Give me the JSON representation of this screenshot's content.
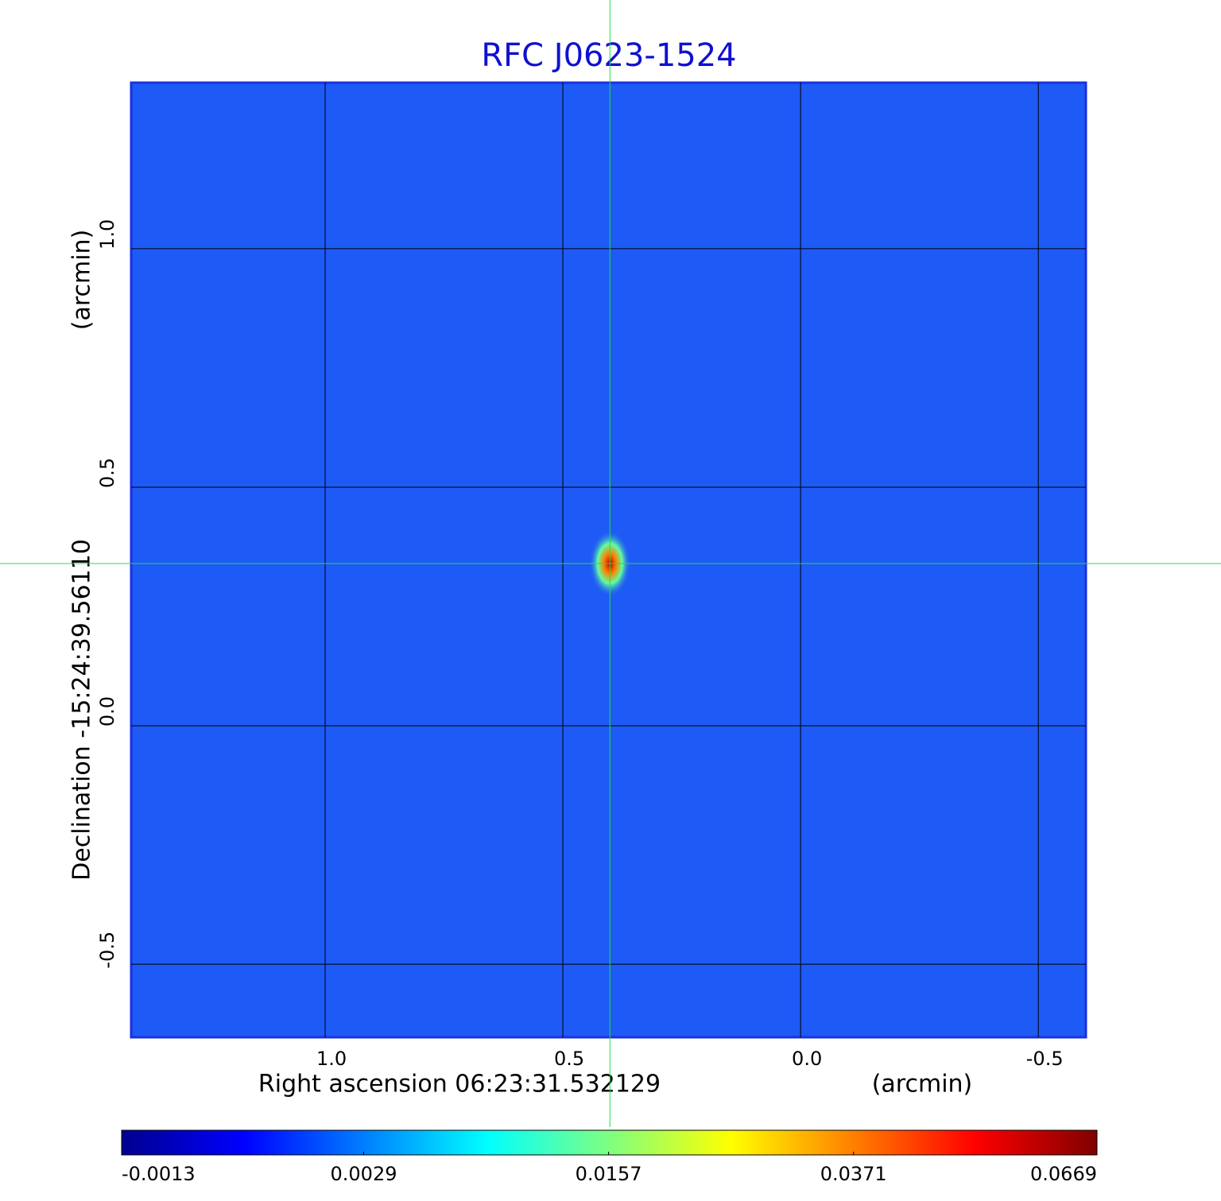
{
  "chart_data": {
    "type": "image",
    "title": "RFC J0623-1524",
    "x_label": "Right ascension  06:23:31.532129",
    "x_unit": "(arcmin)",
    "y_label": "Declination  -15:24:39.56110",
    "y_unit": "(arcmin)",
    "xlim": [
      1.408,
      -0.6
    ],
    "ylim": [
      -0.653,
      1.348
    ],
    "xticks": [
      {
        "value": 1,
        "label": "1.0"
      },
      0.5,
      {
        "value": 0,
        "label": "0.0"
      },
      -0.5
    ],
    "yticks": [
      {
        "value": 1,
        "label": "1.0"
      },
      0.5,
      {
        "value": 0,
        "label": "0.0"
      },
      -0.5
    ],
    "grid": true,
    "crosshair": {
      "x": 0.401,
      "y": 0.34
    },
    "colorbar": {
      "lim": [
        -0.0013,
        0.0669
      ],
      "scale": "sqrt",
      "ticks": [
        -0.0013,
        0.0029,
        0.0157,
        0.0371,
        0.0669
      ]
    }
  }
}
